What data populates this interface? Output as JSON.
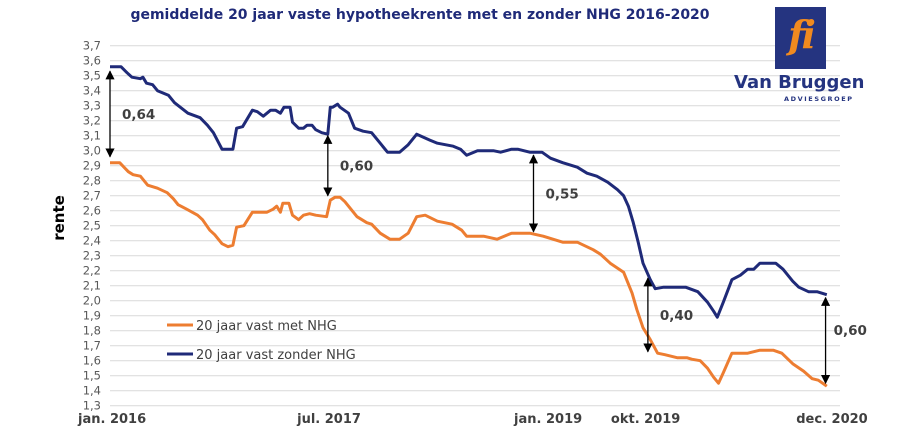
{
  "chart_data": {
    "type": "line",
    "title": "gemiddelde 20 jaar vaste hypotheekrente met en zonder NHG 2016-2020",
    "xlabel": "",
    "ylabel": "rente",
    "ylim": [
      1.3,
      3.7
    ],
    "ytick_step": 0.1,
    "xlim_months": [
      0,
      59
    ],
    "grid": "horizontal",
    "yticks": [
      "3,7",
      "3,6",
      "3,5",
      "3,4",
      "3,3",
      "3,2",
      "3,1",
      "3,0",
      "2,9",
      "2,8",
      "2,7",
      "2,6",
      "2,5",
      "2,4",
      "2,3",
      "2,2",
      "2,1",
      "2,0",
      "1,9",
      "1,8",
      "1,7",
      "1,6",
      "1,5",
      "1,4",
      "1,3"
    ],
    "xticks": [
      {
        "label": "jan. 2016",
        "month": 0
      },
      {
        "label": "jul. 2017",
        "month": 18
      },
      {
        "label": "jan. 2019",
        "month": 36
      },
      {
        "label": "okt. 2019",
        "month": 45
      },
      {
        "label": "dec. 2020",
        "month": 59
      }
    ],
    "legend_position": "bottom-left",
    "series": [
      {
        "name": "20 jaar vast met NHG",
        "color": "#ED7D31",
        "points": [
          [
            0,
            2.92
          ],
          [
            0.8,
            2.92
          ],
          [
            1.5,
            2.86
          ],
          [
            1.9,
            2.84
          ],
          [
            2.5,
            2.83
          ],
          [
            3.1,
            2.77
          ],
          [
            3.9,
            2.75
          ],
          [
            4.7,
            2.72
          ],
          [
            5.2,
            2.68
          ],
          [
            5.6,
            2.64
          ],
          [
            6.3,
            2.61
          ],
          [
            7.2,
            2.57
          ],
          [
            7.6,
            2.54
          ],
          [
            8.2,
            2.47
          ],
          [
            8.6,
            2.44
          ],
          [
            9.2,
            2.38
          ],
          [
            9.7,
            2.36
          ],
          [
            10.1,
            2.37
          ],
          [
            10.4,
            2.49
          ],
          [
            11.0,
            2.5
          ],
          [
            11.7,
            2.59
          ],
          [
            12.2,
            2.59
          ],
          [
            12.9,
            2.59
          ],
          [
            13.4,
            2.61
          ],
          [
            13.7,
            2.63
          ],
          [
            14.0,
            2.59
          ],
          [
            14.2,
            2.65
          ],
          [
            14.7,
            2.65
          ],
          [
            15.0,
            2.57
          ],
          [
            15.5,
            2.54
          ],
          [
            15.9,
            2.57
          ],
          [
            16.4,
            2.58
          ],
          [
            16.9,
            2.57
          ],
          [
            17.8,
            2.56
          ],
          [
            18.1,
            2.67
          ],
          [
            18.5,
            2.69
          ],
          [
            18.9,
            2.69
          ],
          [
            19.3,
            2.66
          ],
          [
            20.3,
            2.56
          ],
          [
            21.1,
            2.52
          ],
          [
            21.5,
            2.51
          ],
          [
            22.2,
            2.45
          ],
          [
            23.0,
            2.41
          ],
          [
            23.8,
            2.41
          ],
          [
            24.5,
            2.45
          ],
          [
            25.2,
            2.56
          ],
          [
            25.9,
            2.57
          ],
          [
            26.9,
            2.53
          ],
          [
            28.1,
            2.51
          ],
          [
            28.9,
            2.47
          ],
          [
            29.3,
            2.43
          ],
          [
            30.7,
            2.43
          ],
          [
            31.8,
            2.41
          ],
          [
            33.0,
            2.45
          ],
          [
            34.5,
            2.45
          ],
          [
            35.6,
            2.43
          ],
          [
            37.2,
            2.39
          ],
          [
            38.4,
            2.39
          ],
          [
            39.7,
            2.34
          ],
          [
            40.3,
            2.31
          ],
          [
            41.1,
            2.25
          ],
          [
            42.2,
            2.19
          ],
          [
            42.9,
            2.05
          ],
          [
            43.3,
            1.94
          ],
          [
            43.8,
            1.82
          ],
          [
            44.4,
            1.74
          ],
          [
            45.0,
            1.65
          ],
          [
            45.6,
            1.64
          ],
          [
            46.6,
            1.62
          ],
          [
            47.4,
            1.62
          ],
          [
            47.8,
            1.61
          ],
          [
            48.5,
            1.6
          ],
          [
            49.1,
            1.55
          ],
          [
            49.6,
            1.49
          ],
          [
            50.0,
            1.45
          ],
          [
            50.4,
            1.52
          ],
          [
            51.1,
            1.65
          ],
          [
            52.4,
            1.65
          ],
          [
            53.4,
            1.67
          ],
          [
            54.5,
            1.67
          ],
          [
            55.2,
            1.65
          ],
          [
            56.1,
            1.58
          ],
          [
            57.0,
            1.53
          ],
          [
            57.7,
            1.48
          ],
          [
            58.2,
            1.47
          ],
          [
            58.9,
            1.43
          ]
        ]
      },
      {
        "name": "20 jaar vast zonder NHG",
        "color": "#1F2A78",
        "points": [
          [
            0,
            3.56
          ],
          [
            0.9,
            3.56
          ],
          [
            1.4,
            3.52
          ],
          [
            1.8,
            3.49
          ],
          [
            2.5,
            3.48
          ],
          [
            2.7,
            3.49
          ],
          [
            3.0,
            3.45
          ],
          [
            3.5,
            3.44
          ],
          [
            3.9,
            3.4
          ],
          [
            4.8,
            3.37
          ],
          [
            5.3,
            3.32
          ],
          [
            6.4,
            3.25
          ],
          [
            7.4,
            3.22
          ],
          [
            8.0,
            3.17
          ],
          [
            8.5,
            3.12
          ],
          [
            9.2,
            3.01
          ],
          [
            10.1,
            3.01
          ],
          [
            10.4,
            3.15
          ],
          [
            10.9,
            3.16
          ],
          [
            11.7,
            3.27
          ],
          [
            12.1,
            3.26
          ],
          [
            12.6,
            3.23
          ],
          [
            13.2,
            3.27
          ],
          [
            13.6,
            3.27
          ],
          [
            14.0,
            3.25
          ],
          [
            14.3,
            3.29
          ],
          [
            14.8,
            3.29
          ],
          [
            15.0,
            3.19
          ],
          [
            15.5,
            3.15
          ],
          [
            15.9,
            3.15
          ],
          [
            16.2,
            3.17
          ],
          [
            16.6,
            3.17
          ],
          [
            16.9,
            3.14
          ],
          [
            17.4,
            3.12
          ],
          [
            17.9,
            3.11
          ],
          [
            18.1,
            3.29
          ],
          [
            18.3,
            3.29
          ],
          [
            18.7,
            3.31
          ],
          [
            18.9,
            3.29
          ],
          [
            19.6,
            3.25
          ],
          [
            20.1,
            3.15
          ],
          [
            20.8,
            3.13
          ],
          [
            21.5,
            3.12
          ],
          [
            22.2,
            3.05
          ],
          [
            22.8,
            2.99
          ],
          [
            23.8,
            2.99
          ],
          [
            24.5,
            3.04
          ],
          [
            25.2,
            3.11
          ],
          [
            26.3,
            3.07
          ],
          [
            26.9,
            3.05
          ],
          [
            28.2,
            3.03
          ],
          [
            28.8,
            3.01
          ],
          [
            29.3,
            2.97
          ],
          [
            30.2,
            3.0
          ],
          [
            31.5,
            3.0
          ],
          [
            32.1,
            2.99
          ],
          [
            33.0,
            3.01
          ],
          [
            33.5,
            3.01
          ],
          [
            34.5,
            2.99
          ],
          [
            35.5,
            2.99
          ],
          [
            36.2,
            2.95
          ],
          [
            37.2,
            2.92
          ],
          [
            38.4,
            2.89
          ],
          [
            39.2,
            2.85
          ],
          [
            40.0,
            2.83
          ],
          [
            40.9,
            2.79
          ],
          [
            41.7,
            2.74
          ],
          [
            42.2,
            2.7
          ],
          [
            42.6,
            2.63
          ],
          [
            43.0,
            2.52
          ],
          [
            43.4,
            2.39
          ],
          [
            43.8,
            2.25
          ],
          [
            44.4,
            2.14
          ],
          [
            44.8,
            2.08
          ],
          [
            45.5,
            2.09
          ],
          [
            47.3,
            2.09
          ],
          [
            48.3,
            2.06
          ],
          [
            49.1,
            1.99
          ],
          [
            49.6,
            1.93
          ],
          [
            49.9,
            1.89
          ],
          [
            50.4,
            1.99
          ],
          [
            51.1,
            2.14
          ],
          [
            51.8,
            2.17
          ],
          [
            52.4,
            2.21
          ],
          [
            52.9,
            2.21
          ],
          [
            53.4,
            2.25
          ],
          [
            54.7,
            2.25
          ],
          [
            55.3,
            2.21
          ],
          [
            56.1,
            2.13
          ],
          [
            56.6,
            2.09
          ],
          [
            57.4,
            2.06
          ],
          [
            58.1,
            2.06
          ],
          [
            58.9,
            2.04
          ]
        ]
      }
    ],
    "annotations": [
      {
        "label": "0,64",
        "month": 0,
        "from": 3.53,
        "to": 2.96,
        "label_side": "right"
      },
      {
        "label": "0,60",
        "month": 17.9,
        "from": 3.1,
        "to": 2.7,
        "label_side": "right"
      },
      {
        "label": "0,55",
        "month": 34.8,
        "from": 2.97,
        "to": 2.46,
        "label_side": "right"
      },
      {
        "label": "0,40",
        "month": 44.2,
        "from": 2.15,
        "to": 1.66,
        "label_side": "right"
      },
      {
        "label": "0,60",
        "month": 58.8,
        "from": 2.02,
        "to": 1.45,
        "label_side": "left-below"
      }
    ]
  },
  "logo": {
    "mark": "fi",
    "name": "Van Bruggen",
    "sub": "ADVIESGROEP"
  }
}
